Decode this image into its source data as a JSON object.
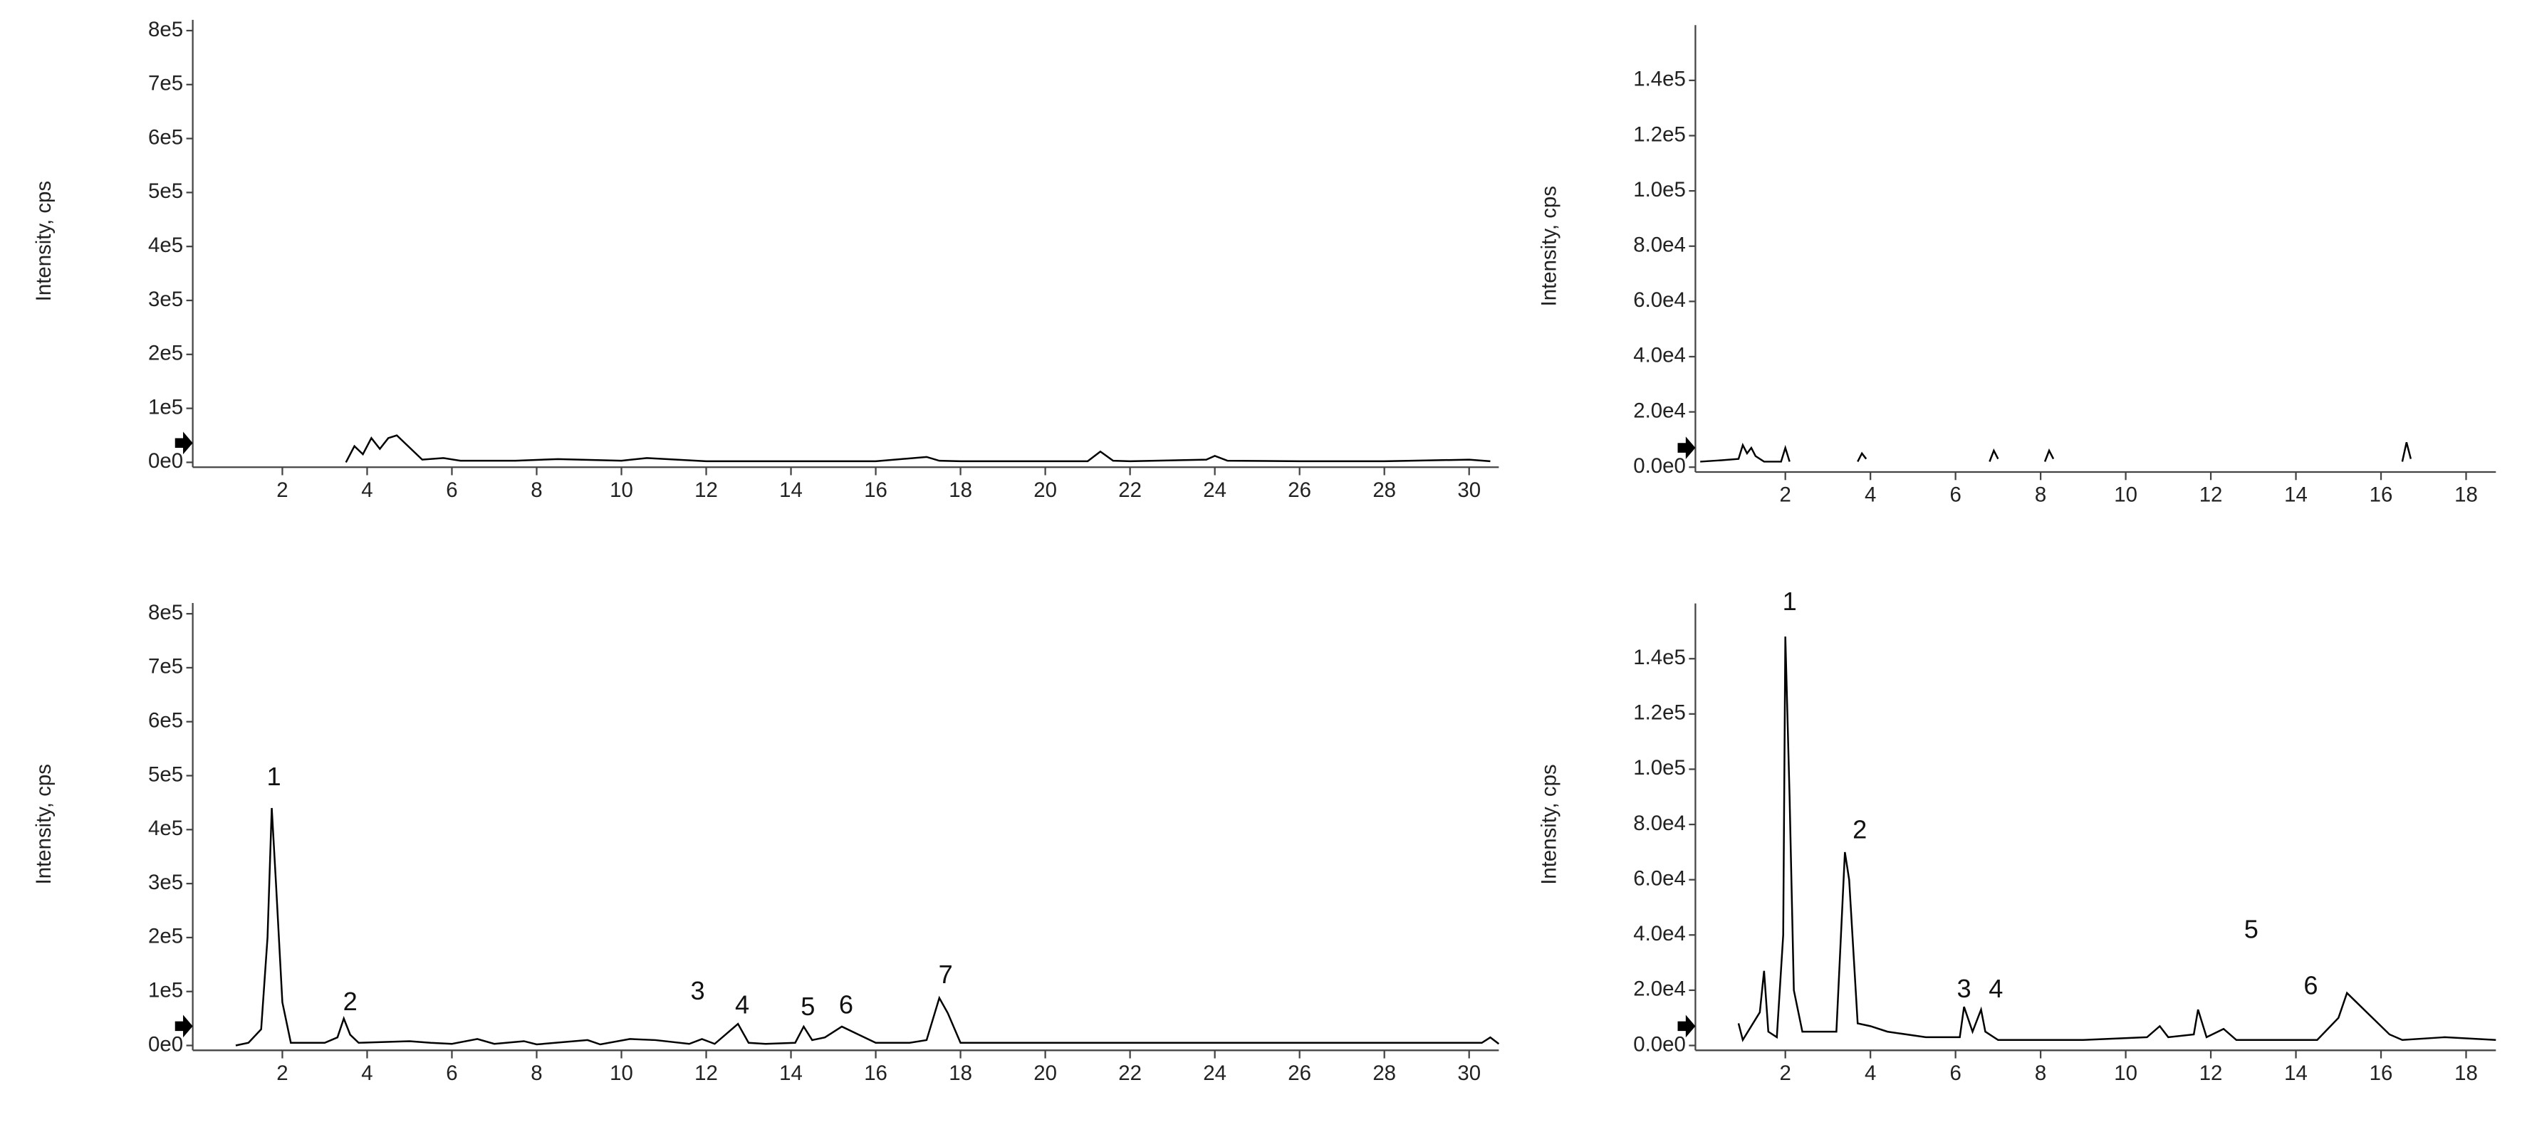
{
  "chart_data": [
    {
      "type": "line",
      "ylabel": "Intensity, cps",
      "color": "#000000",
      "xlim": [
        0,
        30.7
      ],
      "xticks": [
        2,
        4,
        6,
        8,
        10,
        12,
        14,
        16,
        18,
        20,
        22,
        24,
        26,
        28,
        30
      ],
      "ylim": [
        0,
        820000
      ],
      "yticks": [
        {
          "value": 0,
          "label": "0e0"
        },
        {
          "value": 100000,
          "label": "1e5"
        },
        {
          "value": 200000,
          "label": "2e5"
        },
        {
          "value": 300000,
          "label": "3e5"
        },
        {
          "value": 400000,
          "label": "4e5"
        },
        {
          "value": 500000,
          "label": "5e5"
        },
        {
          "value": 600000,
          "label": "6e5"
        },
        {
          "value": 700000,
          "label": "7e5"
        },
        {
          "value": 800000,
          "label": "8e5"
        }
      ],
      "x": [
        3.5,
        3.7,
        3.9,
        4.1,
        4.3,
        4.5,
        4.7,
        4.9,
        5.1,
        5.3,
        5.8,
        6.2,
        7.5,
        8.5,
        10,
        10.6,
        12,
        14,
        16,
        17.2,
        17.5,
        18,
        19,
        21,
        21.3,
        21.6,
        22,
        23.8,
        24,
        24.3,
        26,
        28,
        30,
        30.5
      ],
      "values": [
        0,
        30000,
        15000,
        45000,
        25000,
        45000,
        50000,
        35000,
        20000,
        5000,
        8000,
        3000,
        3000,
        6000,
        3000,
        8000,
        2000,
        2000,
        2000,
        10000,
        3000,
        2000,
        2000,
        2000,
        20000,
        3000,
        2000,
        5000,
        12000,
        3000,
        2000,
        2000,
        5000,
        2000
      ],
      "annotations": []
    },
    {
      "type": "line",
      "ylabel": "Intensity, cps",
      "color": "#000000",
      "xlim": [
        0,
        18.7
      ],
      "xticks": [
        2,
        4,
        6,
        8,
        10,
        12,
        14,
        16,
        18
      ],
      "ylim": [
        0,
        160000
      ],
      "yticks": [
        {
          "value": 0,
          "label": "0.0e0"
        },
        {
          "value": 20000,
          "label": "2.0e4"
        },
        {
          "value": 40000,
          "label": "4.0e4"
        },
        {
          "value": 60000,
          "label": "6.0e4"
        },
        {
          "value": 80000,
          "label": "8.0e4"
        },
        {
          "value": 100000,
          "label": "1.0e5"
        },
        {
          "value": 120000,
          "label": "1.2e5"
        },
        {
          "value": 140000,
          "label": "1.4e5"
        }
      ],
      "x": [
        0,
        0.5,
        0.9,
        1.0,
        1.1,
        1.2,
        1.3,
        1.5,
        1.9,
        2.0,
        2.1,
        2.5,
        3.7,
        3.8,
        3.9,
        4.1,
        6.8,
        6.9,
        7.0,
        7.2,
        8.1,
        8.2,
        8.3,
        8.5,
        16.5,
        16.6,
        16.7,
        16.8
      ],
      "values": [
        2000,
        2500,
        3000,
        8000,
        5000,
        7000,
        4000,
        2000,
        2000,
        7000,
        2000,
        null,
        2000,
        5000,
        3000,
        null,
        2000,
        6000,
        3000,
        null,
        2000,
        6000,
        3000,
        null,
        2000,
        9000,
        3000,
        null
      ],
      "annotations": []
    },
    {
      "type": "line",
      "ylabel": "Intensity, cps",
      "color": "#000000",
      "xlim": [
        0,
        30.7
      ],
      "xticks": [
        2,
        4,
        6,
        8,
        10,
        12,
        14,
        16,
        18,
        20,
        22,
        24,
        26,
        28,
        30
      ],
      "ylim": [
        0,
        820000
      ],
      "yticks": [
        {
          "value": 0,
          "label": "0e0"
        },
        {
          "value": 100000,
          "label": "1e5"
        },
        {
          "value": 200000,
          "label": "2e5"
        },
        {
          "value": 300000,
          "label": "3e5"
        },
        {
          "value": 400000,
          "label": "4e5"
        },
        {
          "value": 500000,
          "label": "5e5"
        },
        {
          "value": 600000,
          "label": "6e5"
        },
        {
          "value": 700000,
          "label": "7e5"
        },
        {
          "value": 800000,
          "label": "8e5"
        }
      ],
      "x": [
        0.9,
        1.2,
        1.5,
        1.65,
        1.75,
        1.85,
        2.0,
        2.2,
        3.0,
        3.3,
        3.45,
        3.6,
        3.8,
        5,
        5.5,
        6,
        6.6,
        7,
        7.7,
        8,
        9.2,
        9.5,
        10.2,
        10.8,
        11.6,
        11.9,
        12.2,
        12.6,
        12.75,
        13,
        13.4,
        14.1,
        14.3,
        14.5,
        14.8,
        15.2,
        15.6,
        16,
        16.8,
        17.2,
        17.5,
        17.7,
        18,
        30.3,
        30.5,
        30.7
      ],
      "values": [
        0,
        5000,
        30000,
        200000,
        440000,
        300000,
        80000,
        5000,
        5000,
        15000,
        50000,
        20000,
        5000,
        8000,
        5000,
        3000,
        12000,
        3000,
        8000,
        2000,
        10000,
        2000,
        12000,
        10000,
        3000,
        12000,
        3000,
        30000,
        40000,
        5000,
        3000,
        5000,
        35000,
        10000,
        15000,
        35000,
        20000,
        5000,
        5000,
        10000,
        88000,
        60000,
        5000,
        5000,
        15000,
        3000
      ],
      "annotations": [
        {
          "text": "1",
          "x": 1.8,
          "y": 495000
        },
        {
          "text": "2",
          "x": 3.6,
          "y": 78000
        },
        {
          "text": "3",
          "x": 11.8,
          "y": 98000
        },
        {
          "text": "4",
          "x": 12.85,
          "y": 72000
        },
        {
          "text": "5",
          "x": 14.4,
          "y": 69000
        },
        {
          "text": "6",
          "x": 15.3,
          "y": 72000
        },
        {
          "text": "7",
          "x": 17.65,
          "y": 128000
        }
      ]
    },
    {
      "type": "line",
      "ylabel": "Intensity, cps",
      "color": "#000000",
      "xlim": [
        0,
        18.7
      ],
      "xticks": [
        2,
        4,
        6,
        8,
        10,
        12,
        14,
        16,
        18
      ],
      "ylim": [
        0,
        160000
      ],
      "yticks": [
        {
          "value": 0,
          "label": "0.0e0"
        },
        {
          "value": 20000,
          "label": "2.0e4"
        },
        {
          "value": 40000,
          "label": "4.0e4"
        },
        {
          "value": 60000,
          "label": "6.0e4"
        },
        {
          "value": 80000,
          "label": "8.0e4"
        },
        {
          "value": 100000,
          "label": "1.0e5"
        },
        {
          "value": 120000,
          "label": "1.2e5"
        },
        {
          "value": 140000,
          "label": "1.4e5"
        }
      ],
      "x": [
        0.9,
        1.0,
        1.4,
        1.5,
        1.6,
        1.8,
        1.95,
        2.0,
        2.1,
        2.2,
        2.4,
        3.2,
        3.4,
        3.5,
        3.7,
        4,
        4.4,
        5.3,
        6.1,
        6.2,
        6.4,
        6.6,
        6.7,
        7,
        9,
        10.5,
        10.8,
        11,
        11.6,
        11.7,
        11.9,
        12.3,
        12.6,
        14.5,
        15,
        15.2,
        15.4,
        15.8,
        16.2,
        16.5,
        17.5,
        18.7
      ],
      "values": [
        8000,
        2000,
        12000,
        27000,
        5000,
        3000,
        40000,
        148000,
        90000,
        20000,
        5000,
        5000,
        70000,
        60000,
        8000,
        7000,
        5000,
        3000,
        3000,
        14000,
        5000,
        13000,
        5000,
        2000,
        2000,
        3000,
        7000,
        3000,
        4000,
        13000,
        3000,
        6000,
        2000,
        2000,
        10000,
        19000,
        16000,
        10000,
        4000,
        2000,
        3000,
        2000
      ],
      "annotations": [
        {
          "text": "1",
          "x": 2.1,
          "y": 160000
        },
        {
          "text": "2",
          "x": 3.75,
          "y": 77500
        },
        {
          "text": "3",
          "x": 6.2,
          "y": 19800
        },
        {
          "text": "4",
          "x": 6.95,
          "y": 19800
        },
        {
          "text": "5",
          "x": 12.95,
          "y": 41400
        },
        {
          "text": "6",
          "x": 14.35,
          "y": 21000
        }
      ]
    }
  ]
}
